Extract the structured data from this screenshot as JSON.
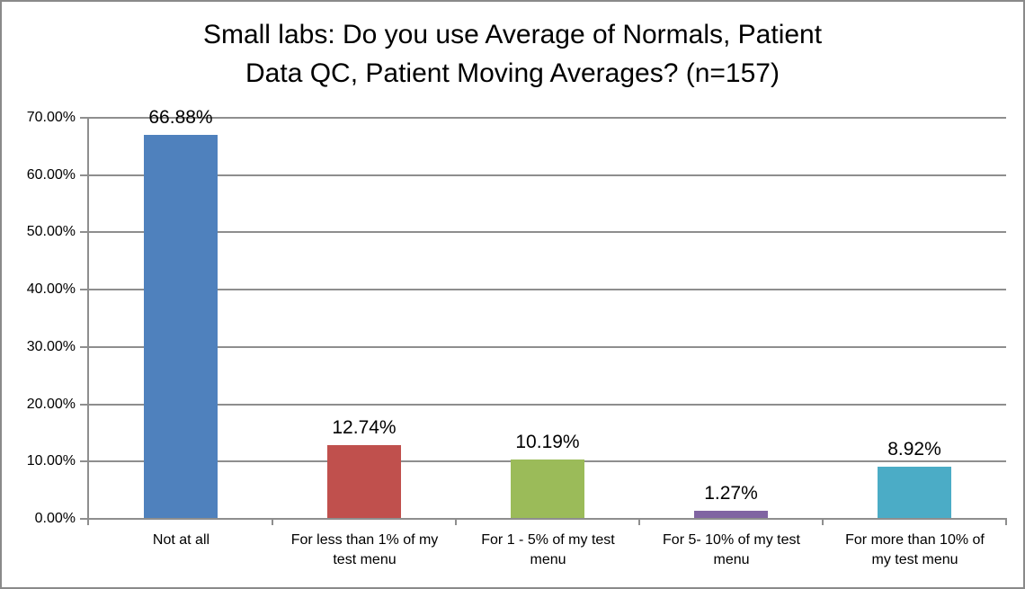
{
  "chart_data": {
    "type": "bar",
    "title": "Small labs: Do you use Average of Normals, Patient Data QC, Patient Moving Averages? (n=157)",
    "title_lines": [
      "Small labs: Do you use Average of Normals, Patient",
      "Data QC, Patient Moving Averages? (n=157)"
    ],
    "categories": [
      "Not at all",
      "For less than 1% of my test menu",
      "For 1 - 5% of my test menu",
      "For 5- 10% of my test menu",
      "For more than 10% of my test menu"
    ],
    "values": [
      66.88,
      12.74,
      10.19,
      1.27,
      8.92
    ],
    "data_labels": [
      "66.88%",
      "12.74%",
      "10.19%",
      "1.27%",
      "8.92%"
    ],
    "bar_colors": [
      "#4F81BD",
      "#C0504D",
      "#9BBB59",
      "#8064A2",
      "#4BACC6"
    ],
    "xlabel": "",
    "ylabel": "",
    "ylim": [
      0,
      70
    ],
    "ytick_step": 10,
    "ytick_labels_top_to_bottom": [
      "70.00%",
      "60.00%",
      "50.00%",
      "40.00%",
      "30.00%",
      "20.00%",
      "10.00%",
      "0.00%"
    ],
    "grid": true,
    "legend": "none"
  },
  "colors": {
    "gridline": "#8e8e8e",
    "axis": "#8e8e8e",
    "frame_border": "#8a8a8a",
    "background": "#ffffff",
    "text": "#000000"
  }
}
